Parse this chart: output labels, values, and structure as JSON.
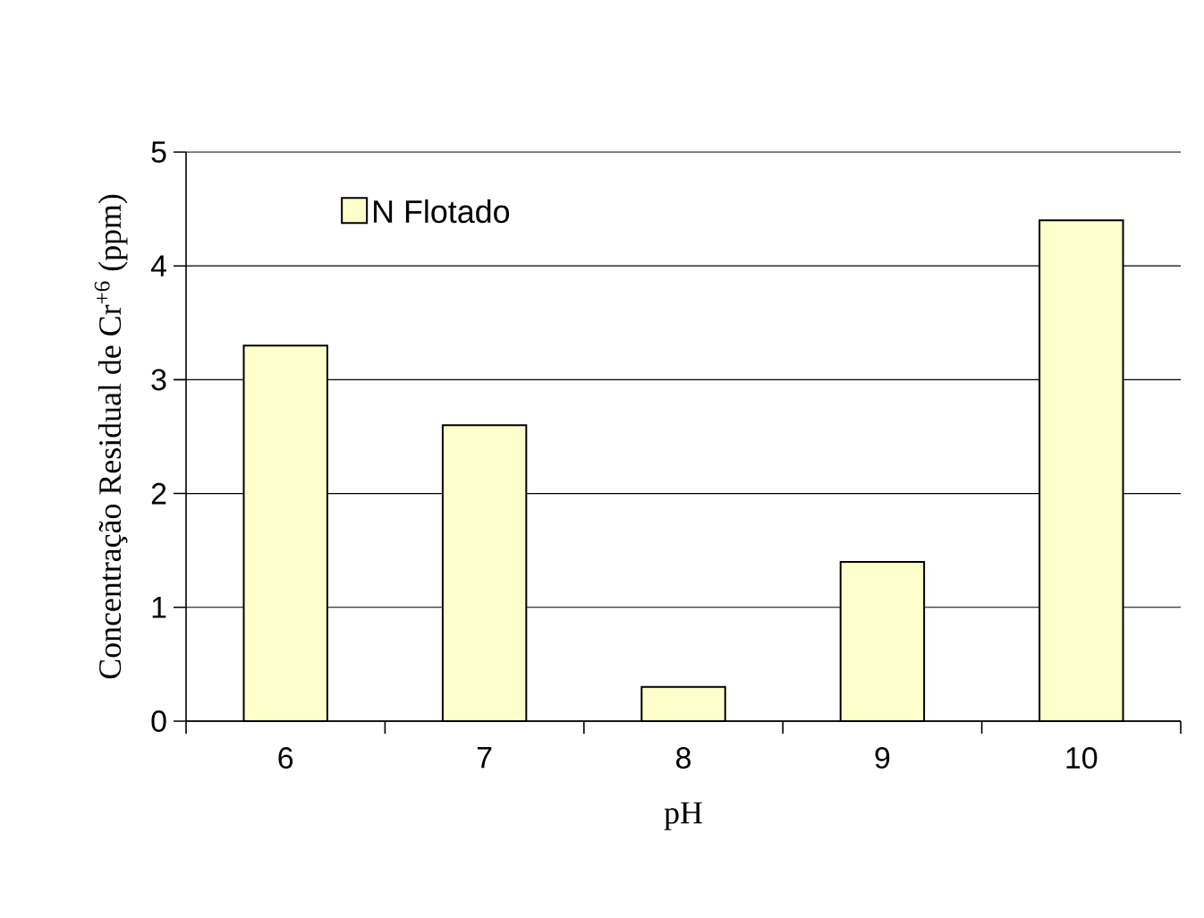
{
  "chart_data": {
    "type": "bar",
    "xlabel": "pH",
    "ylabel": "Concentração Residual de Cr$^{+6}$ (ppm)",
    "categories": [
      "6",
      "7",
      "8",
      "9",
      "10"
    ],
    "series": [
      {
        "name": "N Flotado",
        "color": "#ffffcc",
        "values": [
          3.3,
          2.6,
          0.3,
          1.4,
          4.4
        ]
      }
    ],
    "ylim": [
      0,
      5
    ],
    "yticks": [
      0,
      1,
      2,
      3,
      4,
      5
    ],
    "grid": "y",
    "legend": "top left"
  }
}
